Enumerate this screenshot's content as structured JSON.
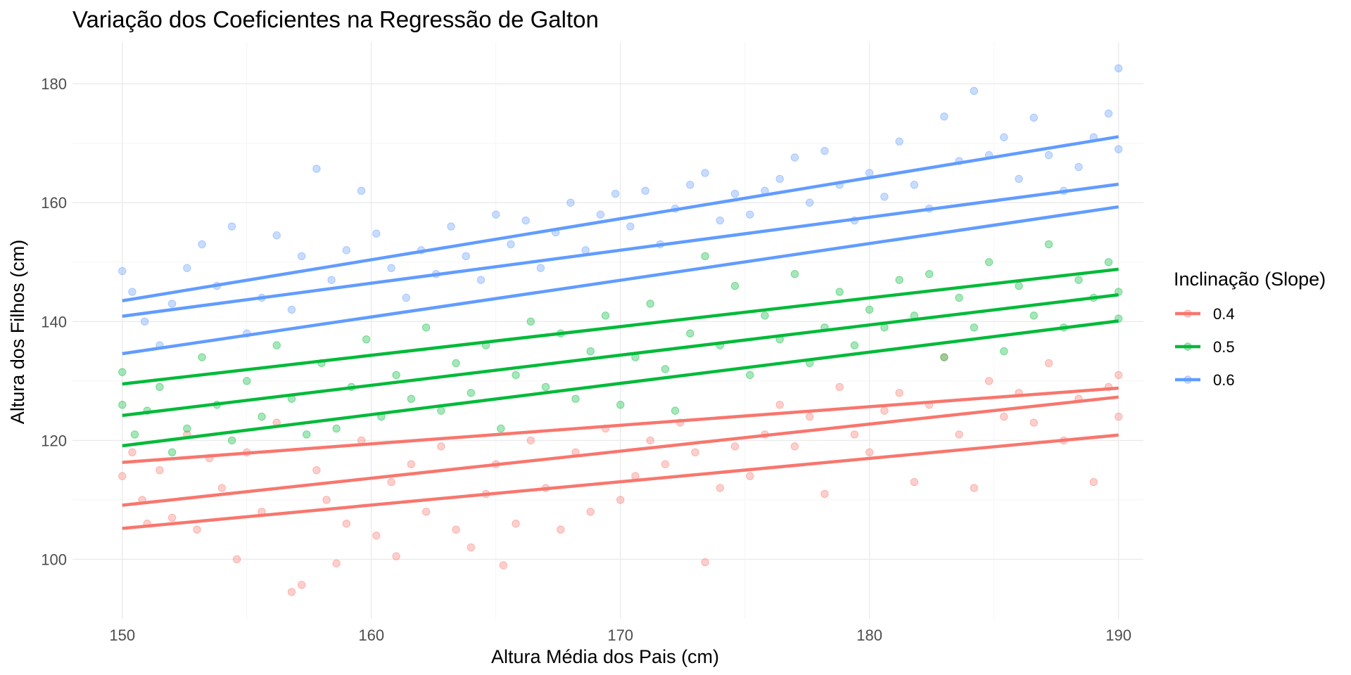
{
  "chart_data": {
    "type": "scatter",
    "title": "Variação dos Coeficientes na Regressão de Galton",
    "xlabel": "Altura Média dos Pais (cm)",
    "ylabel": "Altura dos Filhos (cm)",
    "xlim": [
      148,
      191
    ],
    "ylim": [
      90,
      187
    ],
    "x_ticks": [
      150,
      160,
      170,
      180,
      190
    ],
    "y_ticks": [
      100,
      120,
      140,
      160,
      180
    ],
    "grid": true,
    "legend": {
      "title": "Inclinação (Slope)",
      "position": "right",
      "entries": [
        "0.4",
        "0.5",
        "0.6"
      ]
    },
    "series": [
      {
        "name": "0.4",
        "color": "#F8766D",
        "lines": [
          {
            "x": [
              150,
              190
            ],
            "y": [
              116.3,
              128.8
            ]
          },
          {
            "x": [
              150,
              190
            ],
            "y": [
              109.1,
              127.3
            ]
          },
          {
            "x": [
              150,
              190
            ],
            "y": [
              105.2,
              120.9
            ]
          }
        ],
        "points": [
          [
            150,
            114
          ],
          [
            150.4,
            118
          ],
          [
            150.8,
            110
          ],
          [
            151,
            106
          ],
          [
            151.5,
            115
          ],
          [
            152,
            107
          ],
          [
            152.6,
            121
          ],
          [
            153,
            105
          ],
          [
            153.5,
            117
          ],
          [
            154,
            112
          ],
          [
            154.6,
            100
          ],
          [
            155,
            118
          ],
          [
            155.6,
            108
          ],
          [
            156.2,
            123
          ],
          [
            156.8,
            94.5
          ],
          [
            157.2,
            95.7
          ],
          [
            157.8,
            115
          ],
          [
            158.2,
            110
          ],
          [
            158.6,
            99.3
          ],
          [
            159,
            106
          ],
          [
            159.6,
            120
          ],
          [
            160.2,
            104
          ],
          [
            160.8,
            113
          ],
          [
            161,
            100.5
          ],
          [
            161.6,
            116
          ],
          [
            162.2,
            108
          ],
          [
            162.8,
            119
          ],
          [
            163.4,
            105
          ],
          [
            164,
            102
          ],
          [
            164.6,
            111
          ],
          [
            165,
            116
          ],
          [
            165.3,
            99
          ],
          [
            165.8,
            106
          ],
          [
            166.4,
            120
          ],
          [
            167,
            112
          ],
          [
            167.6,
            105
          ],
          [
            168.2,
            118
          ],
          [
            168.8,
            108
          ],
          [
            169.4,
            122
          ],
          [
            170,
            110
          ],
          [
            170.6,
            114
          ],
          [
            171.2,
            120
          ],
          [
            171.8,
            116
          ],
          [
            172.4,
            123
          ],
          [
            173,
            118
          ],
          [
            173.4,
            99.5
          ],
          [
            174,
            112
          ],
          [
            174.6,
            119
          ],
          [
            175.2,
            114
          ],
          [
            175.8,
            121
          ],
          [
            176.4,
            126
          ],
          [
            177,
            119
          ],
          [
            177.6,
            124
          ],
          [
            178.2,
            111
          ],
          [
            178.8,
            129
          ],
          [
            179.4,
            121
          ],
          [
            180,
            118
          ],
          [
            180.6,
            125
          ],
          [
            181.2,
            128
          ],
          [
            181.8,
            113
          ],
          [
            182.4,
            126
          ],
          [
            183,
            134
          ],
          [
            183.6,
            121
          ],
          [
            184.2,
            112
          ],
          [
            184.8,
            130
          ],
          [
            185.4,
            124
          ],
          [
            186,
            128
          ],
          [
            186.6,
            123
          ],
          [
            187.2,
            133
          ],
          [
            187.8,
            120
          ],
          [
            188.4,
            127
          ],
          [
            189,
            113
          ],
          [
            189.6,
            129
          ],
          [
            190,
            131
          ],
          [
            190,
            124
          ]
        ]
      },
      {
        "name": "0.5",
        "color": "#00BA38",
        "lines": [
          {
            "x": [
              150,
              190
            ],
            "y": [
              129.5,
              148.8
            ]
          },
          {
            "x": [
              150,
              190
            ],
            "y": [
              124.2,
              144.5
            ]
          },
          {
            "x": [
              150,
              190
            ],
            "y": [
              119.1,
              140.1
            ]
          }
        ],
        "points": [
          [
            150,
            131.5
          ],
          [
            150,
            126
          ],
          [
            150.5,
            121
          ],
          [
            151,
            125
          ],
          [
            151.5,
            129
          ],
          [
            152,
            118
          ],
          [
            152.6,
            122
          ],
          [
            153.2,
            134
          ],
          [
            153.8,
            126
          ],
          [
            154.4,
            120
          ],
          [
            155,
            130
          ],
          [
            155.6,
            124
          ],
          [
            156.2,
            136
          ],
          [
            156.8,
            127
          ],
          [
            157.4,
            121
          ],
          [
            158,
            133
          ],
          [
            158.6,
            122
          ],
          [
            159.2,
            129
          ],
          [
            159.8,
            137
          ],
          [
            160.4,
            124
          ],
          [
            161,
            131
          ],
          [
            161.6,
            127
          ],
          [
            162.2,
            139
          ],
          [
            162.8,
            125
          ],
          [
            163.4,
            133
          ],
          [
            164,
            128
          ],
          [
            164.6,
            136
          ],
          [
            165.2,
            122
          ],
          [
            165.8,
            131
          ],
          [
            166.4,
            140
          ],
          [
            167,
            129
          ],
          [
            167.6,
            138
          ],
          [
            168.2,
            127
          ],
          [
            168.8,
            135
          ],
          [
            169.4,
            141
          ],
          [
            170,
            126
          ],
          [
            170.6,
            134
          ],
          [
            171.2,
            143
          ],
          [
            171.8,
            132
          ],
          [
            172.2,
            125
          ],
          [
            172.8,
            138
          ],
          [
            173.4,
            151
          ],
          [
            174,
            136
          ],
          [
            174.6,
            146
          ],
          [
            175.2,
            131
          ],
          [
            175.8,
            141
          ],
          [
            176.4,
            137
          ],
          [
            177,
            148
          ],
          [
            177.6,
            133
          ],
          [
            178.2,
            139
          ],
          [
            178.8,
            145
          ],
          [
            179.4,
            136
          ],
          [
            180,
            142
          ],
          [
            180.6,
            139
          ],
          [
            181.2,
            147
          ],
          [
            181.8,
            141
          ],
          [
            182.4,
            148
          ],
          [
            183,
            134
          ],
          [
            183.6,
            144
          ],
          [
            184.2,
            139
          ],
          [
            184.8,
            150
          ],
          [
            185.4,
            135
          ],
          [
            186,
            146
          ],
          [
            186.6,
            141
          ],
          [
            187.2,
            153
          ],
          [
            187.8,
            139
          ],
          [
            188.4,
            147
          ],
          [
            189,
            144
          ],
          [
            189.6,
            150
          ],
          [
            190,
            145
          ],
          [
            190,
            140.5
          ]
        ]
      },
      {
        "name": "0.6",
        "color": "#619CFF",
        "lines": [
          {
            "x": [
              150,
              190
            ],
            "y": [
              143.5,
              171.1
            ]
          },
          {
            "x": [
              150,
              190
            ],
            "y": [
              140.9,
              163.1
            ]
          },
          {
            "x": [
              150,
              190
            ],
            "y": [
              134.6,
              159.3
            ]
          }
        ],
        "points": [
          [
            150,
            148.5
          ],
          [
            150.4,
            145
          ],
          [
            150.9,
            140
          ],
          [
            151.5,
            136
          ],
          [
            152,
            143
          ],
          [
            152.6,
            149
          ],
          [
            153.2,
            153
          ],
          [
            153.8,
            146
          ],
          [
            154.4,
            156
          ],
          [
            155,
            138
          ],
          [
            155.6,
            144
          ],
          [
            156.2,
            154.5
          ],
          [
            156.8,
            142
          ],
          [
            157.2,
            151
          ],
          [
            157.8,
            165.7
          ],
          [
            158.4,
            147
          ],
          [
            159,
            152
          ],
          [
            159.6,
            162
          ],
          [
            160.2,
            154.8
          ],
          [
            160.8,
            149
          ],
          [
            161.4,
            144
          ],
          [
            162,
            152
          ],
          [
            162.6,
            148
          ],
          [
            163.2,
            156
          ],
          [
            163.8,
            151
          ],
          [
            164.4,
            147
          ],
          [
            165,
            158
          ],
          [
            165.6,
            153
          ],
          [
            166.2,
            157
          ],
          [
            166.8,
            149
          ],
          [
            167.4,
            155
          ],
          [
            168,
            160
          ],
          [
            168.6,
            152
          ],
          [
            169.2,
            158
          ],
          [
            169.8,
            161.5
          ],
          [
            170.4,
            156
          ],
          [
            171,
            162
          ],
          [
            171.6,
            153
          ],
          [
            172.2,
            159
          ],
          [
            172.8,
            163
          ],
          [
            173.4,
            165
          ],
          [
            174,
            157
          ],
          [
            174.6,
            161.5
          ],
          [
            175.2,
            158
          ],
          [
            175.8,
            162
          ],
          [
            176.4,
            164
          ],
          [
            177,
            167.6
          ],
          [
            177.6,
            160
          ],
          [
            178.2,
            168.7
          ],
          [
            178.8,
            163
          ],
          [
            179.4,
            157
          ],
          [
            180,
            165
          ],
          [
            180.6,
            161
          ],
          [
            181.2,
            170.3
          ],
          [
            181.8,
            163
          ],
          [
            182.4,
            159
          ],
          [
            183,
            174.5
          ],
          [
            183.6,
            167
          ],
          [
            184.2,
            178.8
          ],
          [
            184.8,
            168
          ],
          [
            185.4,
            171
          ],
          [
            186,
            164
          ],
          [
            186.6,
            174.3
          ],
          [
            187.2,
            168
          ],
          [
            187.8,
            162
          ],
          [
            188.4,
            166
          ],
          [
            189,
            171
          ],
          [
            189.6,
            175
          ],
          [
            190,
            182.6
          ],
          [
            190,
            169
          ]
        ]
      }
    ]
  }
}
